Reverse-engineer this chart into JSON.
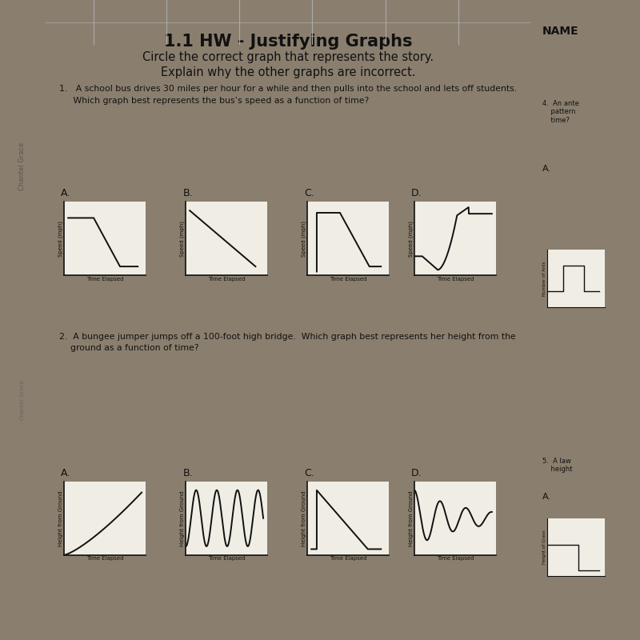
{
  "title": "1.1 HW - Justifying Graphs",
  "subtitle1": "Circle the correct graph that represents the story.",
  "subtitle2": "Explain why the other graphs are incorrect.",
  "q1_text1": "1.   A school bus drives 30 miles per hour for a while and then pulls into the school and lets off students.",
  "q1_text2": "     Which graph best represents the bus’s speed as a function of time?",
  "q2_text1": "2.  A bungee jumper jumps off a 100-foot high bridge.  Which graph best represents her height from the",
  "q2_text2": "    ground as a function of time?",
  "bg_color": "#8a7f6e",
  "paper_color": "#f0ede5",
  "line_color": "#111111",
  "label_fontsize": 5.0,
  "axis_lw": 1.2,
  "graph_lw": 1.4
}
